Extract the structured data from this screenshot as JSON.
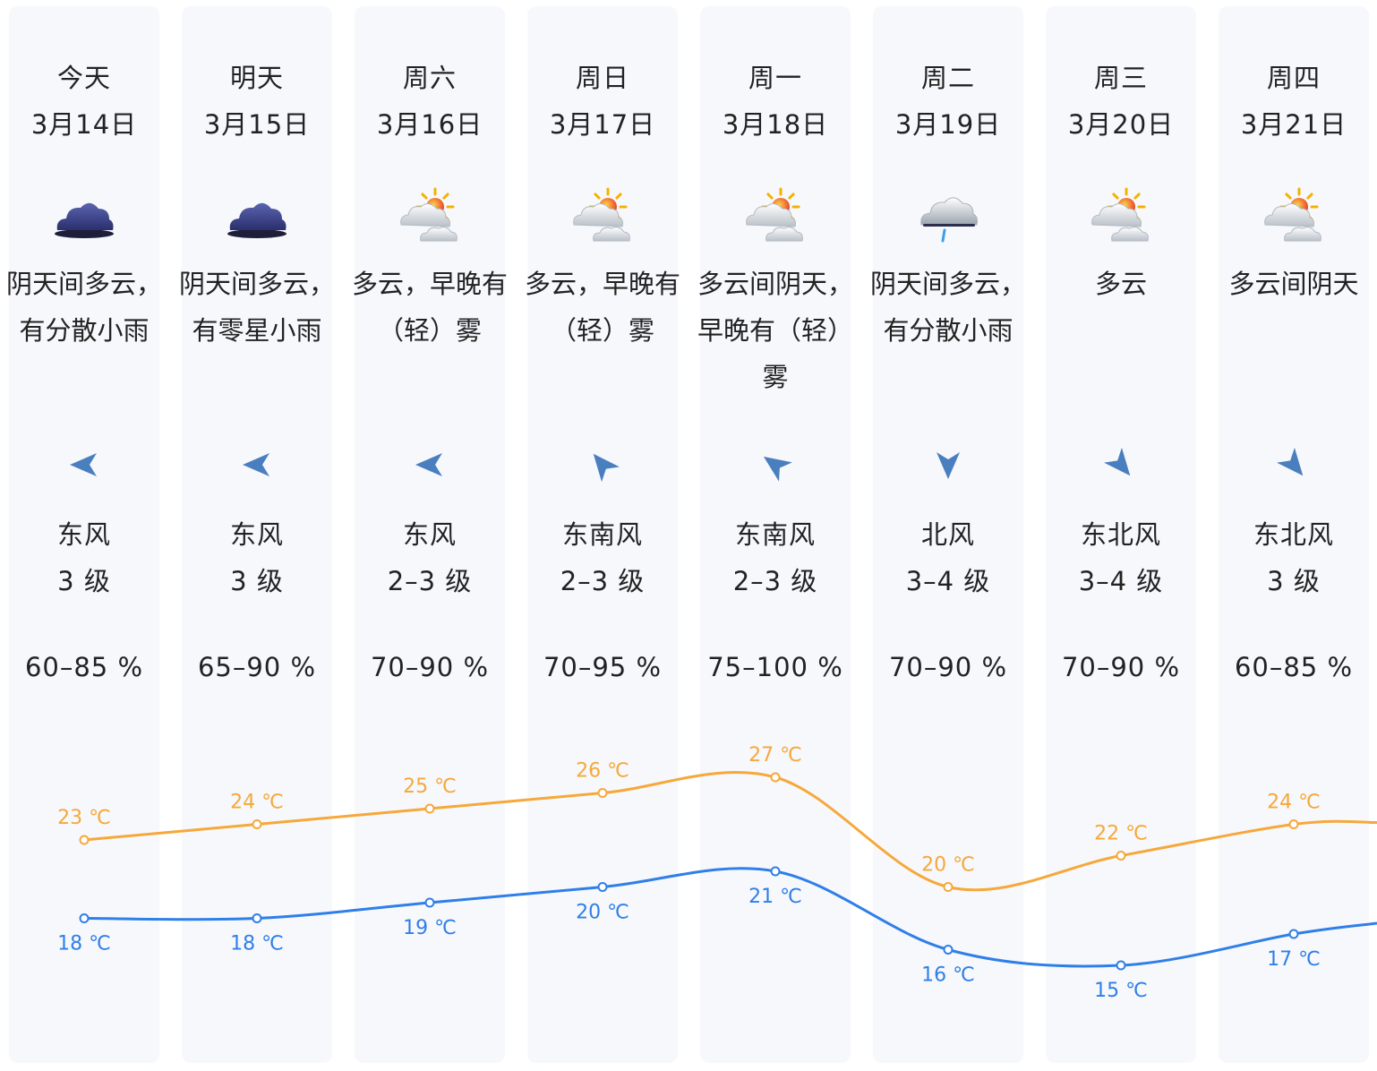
{
  "days": [
    {
      "name": "今天",
      "date": "3月14日",
      "icon": "overcast-cloud-icon",
      "desc": "阴天间多云，有分散小雨",
      "wind_icon": "wind-arrow-east-icon",
      "wind_rot": 0,
      "wind_dir": "东风",
      "wind_level": "3 级",
      "humidity": "60–85 %"
    },
    {
      "name": "明天",
      "date": "3月15日",
      "icon": "overcast-cloud-icon",
      "desc": "阴天间多云，有零星小雨",
      "wind_icon": "wind-arrow-east-icon",
      "wind_rot": 0,
      "wind_dir": "东风",
      "wind_level": "3 级",
      "humidity": "65–90 %"
    },
    {
      "name": "周六",
      "date": "3月16日",
      "icon": "partly-cloudy-icon",
      "desc": "多云，早晚有（轻）雾",
      "wind_icon": "wind-arrow-east-icon",
      "wind_rot": 0,
      "wind_dir": "东风",
      "wind_level": "2–3 级",
      "humidity": "70–90 %"
    },
    {
      "name": "周日",
      "date": "3月17日",
      "icon": "partly-cloudy-icon",
      "desc": "多云，早晚有（轻）雾",
      "wind_icon": "wind-arrow-southeast-icon",
      "wind_rot": 50,
      "wind_dir": "东南风",
      "wind_level": "2–3 级",
      "humidity": "70–95 %"
    },
    {
      "name": "周一",
      "date": "3月18日",
      "icon": "partly-cloudy-icon",
      "desc": "多云间阴天，早晚有（轻）雾",
      "wind_icon": "wind-arrow-southeast-icon",
      "wind_rot": 35,
      "wind_dir": "东南风",
      "wind_level": "2–3 级",
      "humidity": "75–100 %"
    },
    {
      "name": "周二",
      "date": "3月19日",
      "icon": "cloud-rain-icon",
      "desc": "阴天间多云，有分散小雨",
      "wind_icon": "wind-arrow-north-icon",
      "wind_rot": -90,
      "wind_dir": "北风",
      "wind_level": "3–4 级",
      "humidity": "70–90 %"
    },
    {
      "name": "周三",
      "date": "3月20日",
      "icon": "partly-cloudy-icon",
      "desc": "多云",
      "wind_icon": "wind-arrow-northeast-icon",
      "wind_rot": -130,
      "wind_dir": "东北风",
      "wind_level": "3–4 级",
      "humidity": "70–90 %"
    },
    {
      "name": "周四",
      "date": "3月21日",
      "icon": "partly-cloudy-icon",
      "desc": "多云间阴天",
      "wind_icon": "wind-arrow-northeast-icon",
      "wind_rot": -130,
      "wind_dir": "东北风",
      "wind_level": "3 级",
      "humidity": "60–85 %"
    }
  ],
  "colors": {
    "high_line": "#f6a83a",
    "low_line": "#2f7fe8",
    "column_bg": "#f7f8fc",
    "wind_arrow": "#4a7fbf"
  },
  "temperatures": {
    "unit": "℃",
    "high": [
      23,
      24,
      25,
      26,
      27,
      20,
      22,
      24
    ],
    "low": [
      18,
      18,
      19,
      20,
      21,
      16,
      15,
      17
    ]
  }
}
